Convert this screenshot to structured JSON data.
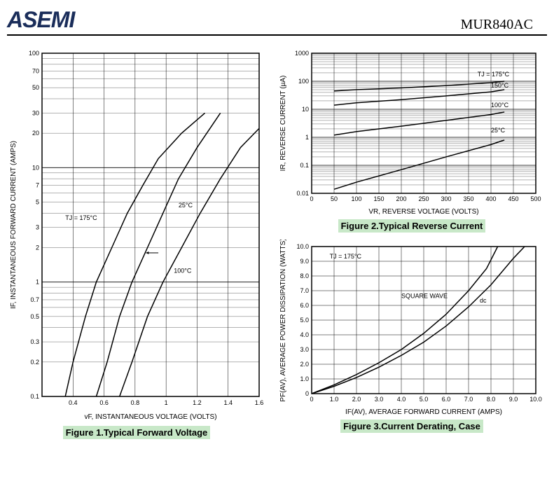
{
  "header": {
    "logo_text": "ASEMI",
    "part_number": "MUR840AC"
  },
  "figure1": {
    "title": "Figure 1.Typical  Forward  Voltage",
    "xlabel": "vF, INSTANTANEOUS VOLTAGE (VOLTS)",
    "ylabel": "IF, INSTANTANEOUS FORWARD CURRENT (AMPS)",
    "xlim": [
      0.2,
      1.6
    ],
    "xticks": [
      0.4,
      0.6,
      0.8,
      1.0,
      1.2,
      1.4,
      1.6
    ],
    "ylim": [
      0.1,
      100
    ],
    "yticks": [
      0.1,
      0.2,
      0.3,
      0.5,
      0.7,
      1.0,
      2.0,
      3.0,
      5.0,
      7.0,
      10,
      20,
      30,
      50,
      70,
      100
    ],
    "curves": [
      {
        "label": "TJ = 175°C",
        "points": [
          [
            0.35,
            0.1
          ],
          [
            0.4,
            0.2
          ],
          [
            0.48,
            0.5
          ],
          [
            0.55,
            1.0
          ],
          [
            0.65,
            2.0
          ],
          [
            0.75,
            4.0
          ],
          [
            0.85,
            7.0
          ],
          [
            0.95,
            12
          ],
          [
            1.1,
            20
          ],
          [
            1.25,
            30
          ]
        ]
      },
      {
        "label": "25°C",
        "points": [
          [
            0.55,
            0.1
          ],
          [
            0.62,
            0.2
          ],
          [
            0.7,
            0.5
          ],
          [
            0.78,
            1.0
          ],
          [
            0.88,
            2.0
          ],
          [
            0.98,
            4.0
          ],
          [
            1.08,
            8.0
          ],
          [
            1.2,
            15
          ],
          [
            1.35,
            30
          ]
        ]
      },
      {
        "label": "100°C",
        "points": [
          [
            0.7,
            0.1
          ],
          [
            0.78,
            0.2
          ],
          [
            0.88,
            0.5
          ],
          [
            0.98,
            1.0
          ],
          [
            1.1,
            2.0
          ],
          [
            1.22,
            4.0
          ],
          [
            1.35,
            8.0
          ],
          [
            1.48,
            15
          ],
          [
            1.6,
            22
          ]
        ]
      }
    ],
    "curve_labels": [
      {
        "text": "TJ = 175°C",
        "x": 0.35,
        "y": 3.5
      },
      {
        "text": "25°C",
        "x": 1.08,
        "y": 4.5
      },
      {
        "text": "100°C",
        "x": 1.05,
        "y": 1.2
      }
    ],
    "background": "#ffffff",
    "grid_color": "#000000",
    "curve_color": "#000000",
    "line_width": 1.5
  },
  "figure2": {
    "title": "Figure 2.Typical  Reverse  Current",
    "xlabel": "VR, REVERSE VOLTAGE (VOLTS)",
    "ylabel": "IR, REVERSE CURRENT (µA)",
    "xlim": [
      0,
      500
    ],
    "xticks": [
      0,
      50,
      100,
      150,
      200,
      250,
      300,
      350,
      400,
      450,
      500
    ],
    "ylim": [
      0.01,
      1000
    ],
    "yticks": [
      0.01,
      0.1,
      1.0,
      10,
      100,
      1000
    ],
    "curves": [
      {
        "label": "TJ = 175°C",
        "points": [
          [
            50,
            45
          ],
          [
            100,
            50
          ],
          [
            200,
            58
          ],
          [
            300,
            70
          ],
          [
            400,
            90
          ],
          [
            430,
            100
          ]
        ]
      },
      {
        "label": "150°C",
        "points": [
          [
            50,
            14
          ],
          [
            100,
            17
          ],
          [
            200,
            22
          ],
          [
            300,
            30
          ],
          [
            400,
            42
          ],
          [
            430,
            50
          ]
        ]
      },
      {
        "label": "100°C",
        "points": [
          [
            50,
            1.2
          ],
          [
            100,
            1.6
          ],
          [
            200,
            2.5
          ],
          [
            300,
            4.0
          ],
          [
            400,
            6.5
          ],
          [
            430,
            8
          ]
        ]
      },
      {
        "label": "25°C",
        "points": [
          [
            50,
            0.014
          ],
          [
            100,
            0.025
          ],
          [
            200,
            0.07
          ],
          [
            300,
            0.2
          ],
          [
            400,
            0.55
          ],
          [
            430,
            0.8
          ]
        ]
      }
    ],
    "curve_labels": [
      {
        "text": "TJ = 175°C",
        "x": 370,
        "y": 150
      },
      {
        "text": "150°C",
        "x": 400,
        "y": 60
      },
      {
        "text": "100°C",
        "x": 400,
        "y": 12
      },
      {
        "text": "25°C",
        "x": 400,
        "y": 1.5
      }
    ],
    "background": "#ffffff",
    "grid_color": "#000000",
    "curve_color": "#000000",
    "line_width": 1.5
  },
  "figure3": {
    "title": "Figure 3.Current  Derating,  Case",
    "xlabel": "IF(AV), AVERAGE FORWARD CURRENT (AMPS)",
    "ylabel": "PF(AV), AVERAGE POWER DISSIPATION (WATTS)",
    "xlim": [
      0,
      10
    ],
    "xticks": [
      0,
      1.0,
      2.0,
      3.0,
      4.0,
      5.0,
      6.0,
      7.0,
      8.0,
      9.0,
      10
    ],
    "ylim": [
      0,
      10
    ],
    "yticks": [
      0,
      1.0,
      2.0,
      3.0,
      4.0,
      5.0,
      6.0,
      7.0,
      8.0,
      9.0,
      10
    ],
    "curves": [
      {
        "label": "SQUARE WAVE",
        "points": [
          [
            0,
            0
          ],
          [
            1,
            0.6
          ],
          [
            2,
            1.3
          ],
          [
            3,
            2.1
          ],
          [
            4,
            3.0
          ],
          [
            5,
            4.1
          ],
          [
            6,
            5.4
          ],
          [
            7,
            7.0
          ],
          [
            7.8,
            8.5
          ],
          [
            8.3,
            10
          ]
        ]
      },
      {
        "label": "dc",
        "points": [
          [
            0,
            0
          ],
          [
            1,
            0.5
          ],
          [
            2,
            1.1
          ],
          [
            3,
            1.8
          ],
          [
            4,
            2.6
          ],
          [
            5,
            3.5
          ],
          [
            6,
            4.6
          ],
          [
            7,
            5.9
          ],
          [
            8,
            7.4
          ],
          [
            9,
            9.2
          ],
          [
            9.5,
            10
          ]
        ]
      }
    ],
    "curve_labels": [
      {
        "text": "TJ = 175°C",
        "x": 0.8,
        "y": 9.2
      },
      {
        "text": "SQUARE WAVE",
        "x": 4.0,
        "y": 6.5
      },
      {
        "text": "dc",
        "x": 7.5,
        "y": 6.2
      }
    ],
    "background": "#ffffff",
    "grid_color": "#000000",
    "curve_color": "#000000",
    "line_width": 1.5
  }
}
